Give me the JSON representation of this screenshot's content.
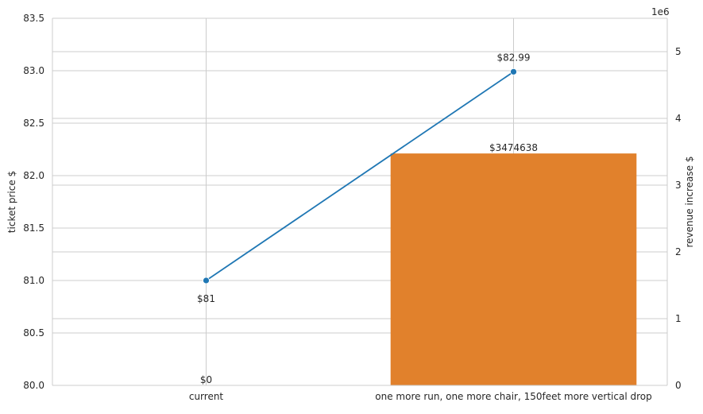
{
  "chart_data": {
    "type": "bar+line",
    "categories": [
      "current",
      "one more run, one more chair, 150feet more vertical drop"
    ],
    "line_series": {
      "axis": "left",
      "values": [
        81.0,
        82.99
      ],
      "labels": [
        "$81",
        "$82.99"
      ],
      "color": "#1f77b4"
    },
    "bar_series": {
      "axis": "right",
      "values": [
        0,
        3474638
      ],
      "labels": [
        "$0",
        "$3474638"
      ],
      "colors": [
        "#1f77b4",
        "#e1812c"
      ]
    },
    "left_axis": {
      "label": "ticket price $",
      "ylim": [
        80.0,
        83.5
      ],
      "ticks": [
        "80.0",
        "80.5",
        "81.0",
        "81.5",
        "82.0",
        "82.5",
        "83.0",
        "83.5"
      ],
      "tick_values": [
        80.0,
        80.5,
        81.0,
        81.5,
        82.0,
        82.5,
        83.0,
        83.5
      ]
    },
    "right_axis": {
      "label": "revenue increase $",
      "offset_text": "1e6",
      "ylim": [
        0,
        5.5
      ],
      "ticks": [
        "0",
        "1",
        "2",
        "3",
        "4",
        "5"
      ],
      "tick_values": [
        0,
        1,
        2,
        3,
        4,
        5
      ],
      "scale": 1000000
    },
    "grid": true,
    "legend": "none"
  }
}
